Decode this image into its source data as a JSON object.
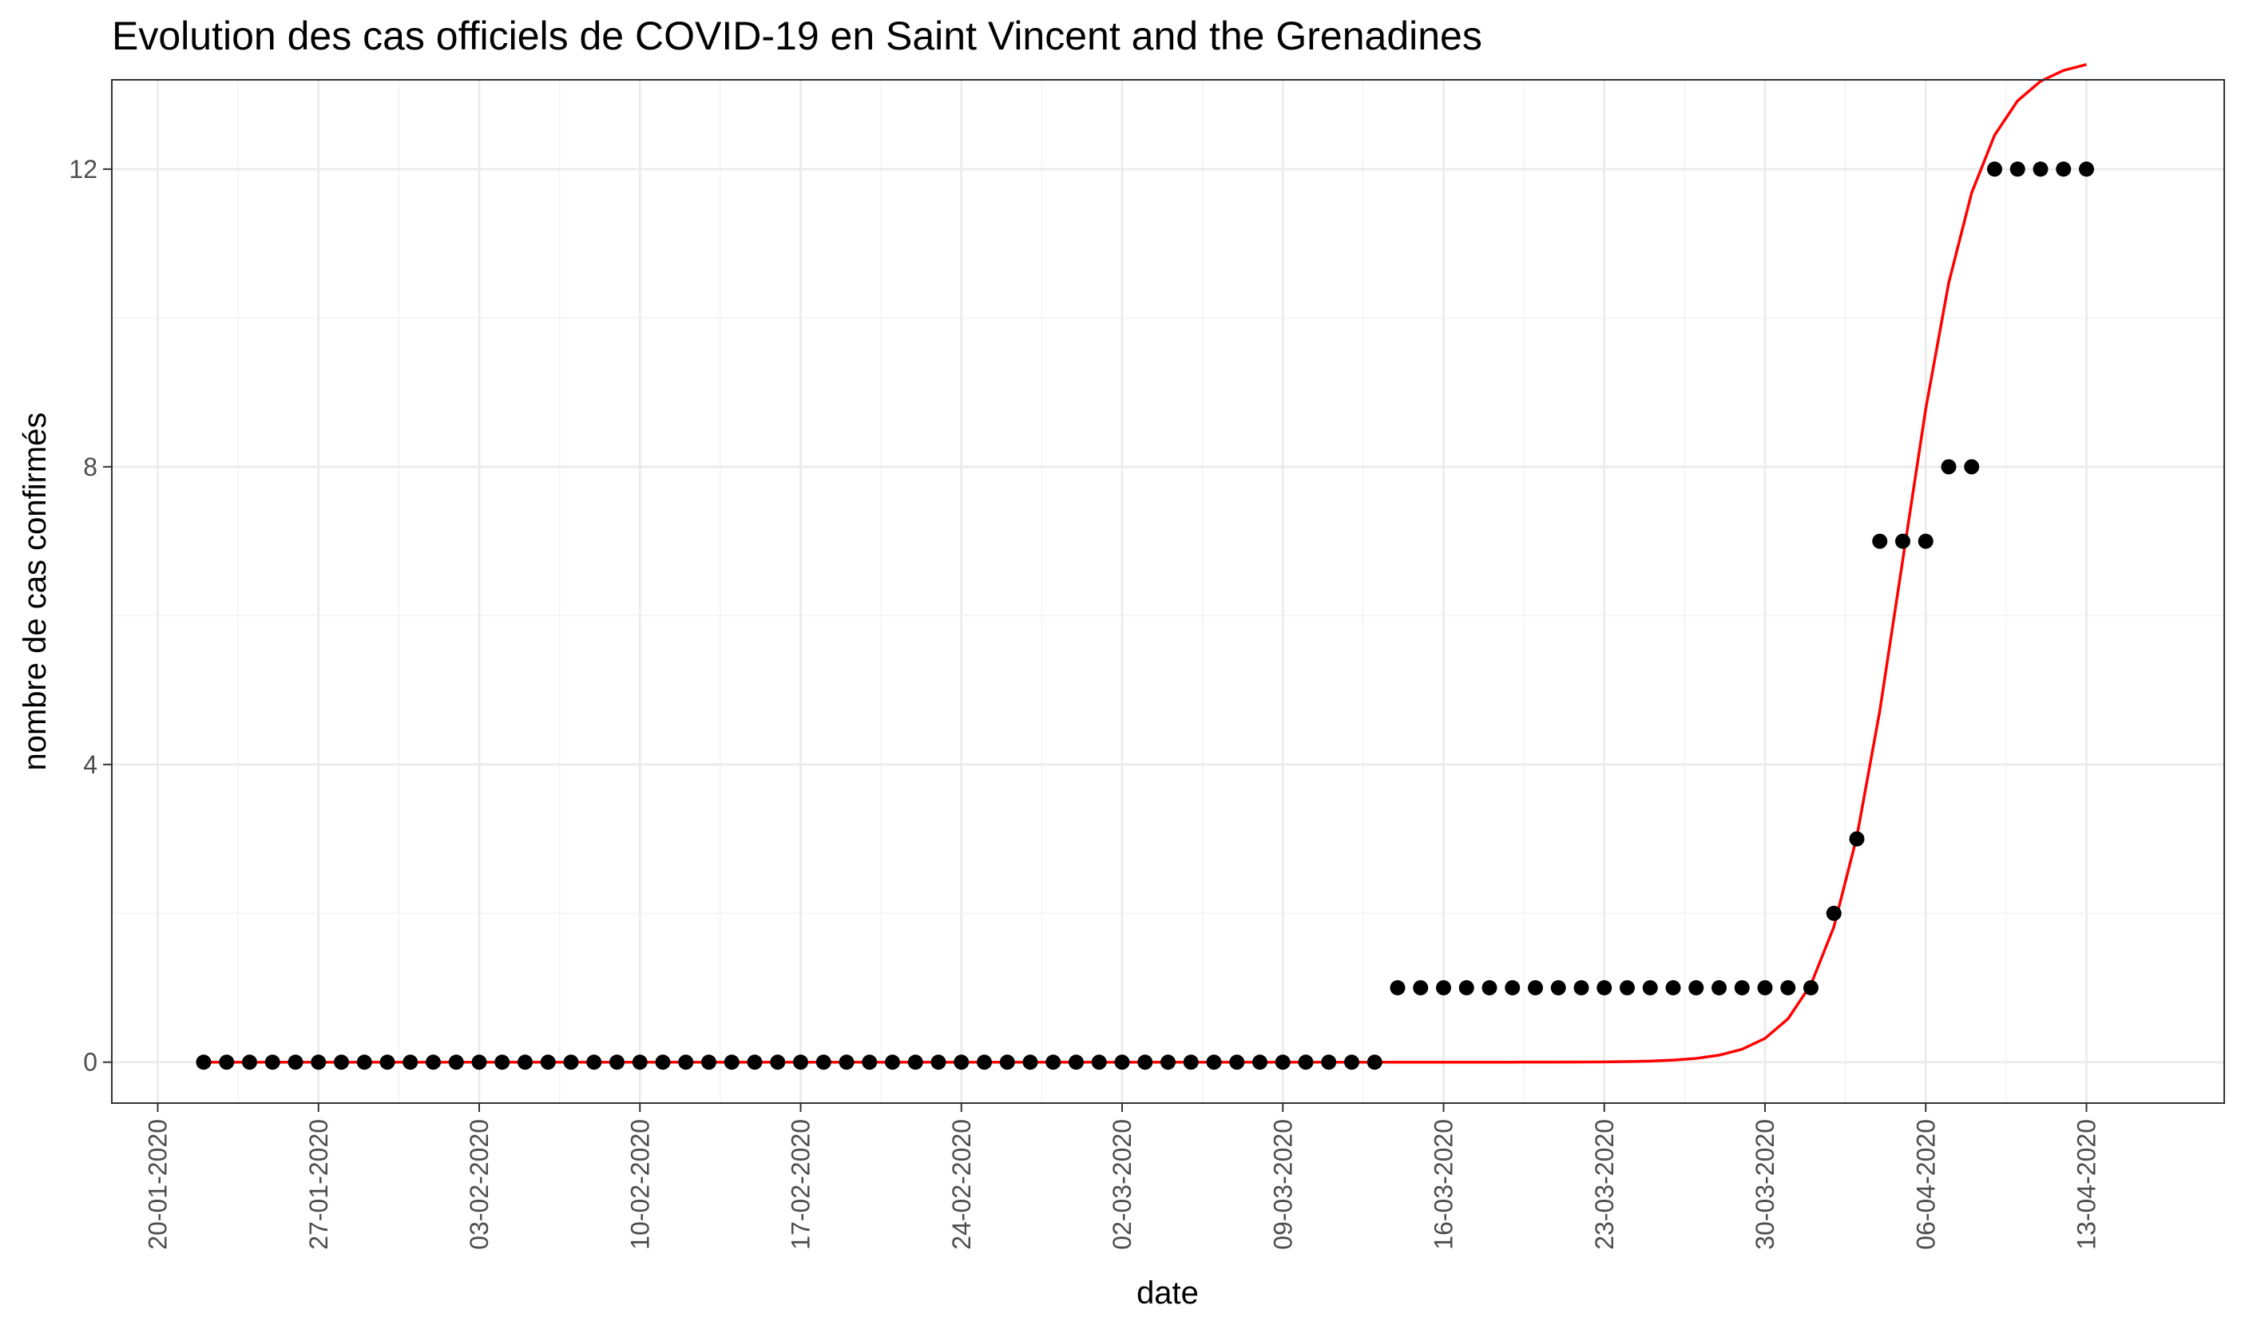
{
  "chart_data": {
    "type": "scatter",
    "title": "Evolution des cas officiels de COVID-19 en Saint Vincent and the Grenadines",
    "xlabel": "date",
    "ylabel": "nombre de cas confirmés",
    "x_range": [
      "2020-01-18",
      "2020-04-19"
    ],
    "ylim": [
      -0.55,
      13.2
    ],
    "x_ticks": [
      "20-01-2020",
      "27-01-2020",
      "03-02-2020",
      "10-02-2020",
      "17-02-2020",
      "24-02-2020",
      "02-03-2020",
      "09-03-2020",
      "16-03-2020",
      "23-03-2020",
      "30-03-2020",
      "06-04-2020",
      "13-04-2020"
    ],
    "y_ticks": [
      "0",
      "4",
      "8",
      "12"
    ],
    "grid": true,
    "legend": "none",
    "series": [
      {
        "kind": "points",
        "color": "#000000",
        "x_start": "2020-01-22",
        "values": [
          0,
          0,
          0,
          0,
          0,
          0,
          0,
          0,
          0,
          0,
          0,
          0,
          0,
          0,
          0,
          0,
          0,
          0,
          0,
          0,
          0,
          0,
          0,
          0,
          0,
          0,
          0,
          0,
          0,
          0,
          0,
          0,
          0,
          0,
          0,
          0,
          0,
          0,
          0,
          0,
          0,
          0,
          0,
          0,
          0,
          0,
          0,
          0,
          0,
          0,
          0,
          0,
          1,
          1,
          1,
          1,
          1,
          1,
          1,
          1,
          1,
          1,
          1,
          1,
          1,
          1,
          1,
          1,
          1,
          1,
          1,
          2,
          3,
          7,
          7,
          7,
          8,
          8,
          12,
          12,
          12,
          12,
          12
        ]
      },
      {
        "kind": "fitted-curve",
        "color": "#ff0000",
        "x_start": "2020-01-22",
        "x_end": "2020-04-13",
        "logistic": {
          "L": 13.5,
          "k": 0.62,
          "x0": "2020-04-05"
        }
      }
    ]
  }
}
